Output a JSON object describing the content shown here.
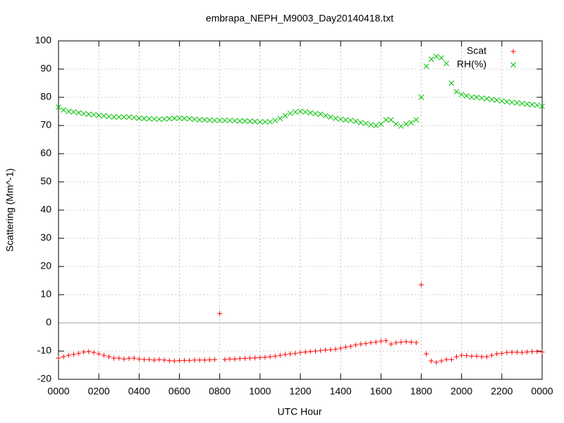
{
  "chart_data": {
    "type": "scatter",
    "title": "embrapa_NEPH_M9003_Day20140418.txt",
    "xlabel": "UTC Hour",
    "ylabel": "Scattering (Mm^-1)",
    "xlim": [
      0,
      24
    ],
    "ylim": [
      -20,
      100
    ],
    "xticks": [
      {
        "value": 0,
        "label": "0000"
      },
      {
        "value": 2,
        "label": "0200"
      },
      {
        "value": 4,
        "label": "0400"
      },
      {
        "value": 6,
        "label": "0600"
      },
      {
        "value": 8,
        "label": "0800"
      },
      {
        "value": 10,
        "label": "1000"
      },
      {
        "value": 12,
        "label": "1200"
      },
      {
        "value": 14,
        "label": "1400"
      },
      {
        "value": 16,
        "label": "1600"
      },
      {
        "value": 18,
        "label": "1800"
      },
      {
        "value": 20,
        "label": "2000"
      },
      {
        "value": 22,
        "label": "2200"
      },
      {
        "value": 24,
        "label": "0000"
      }
    ],
    "yticks": [
      -20,
      -10,
      0,
      10,
      20,
      30,
      40,
      50,
      60,
      70,
      80,
      90,
      100
    ],
    "grid": true,
    "zeroaxis": true,
    "legend": "top-right",
    "x": [
      0,
      0.25,
      0.5,
      0.75,
      1,
      1.25,
      1.5,
      1.75,
      2,
      2.25,
      2.5,
      2.75,
      3,
      3.25,
      3.5,
      3.75,
      4,
      4.25,
      4.5,
      4.75,
      5,
      5.25,
      5.5,
      5.75,
      6,
      6.25,
      6.5,
      6.75,
      7,
      7.25,
      7.5,
      7.75,
      8,
      8.25,
      8.5,
      8.75,
      9,
      9.25,
      9.5,
      9.75,
      10,
      10.25,
      10.5,
      10.75,
      11,
      11.25,
      11.5,
      11.75,
      12,
      12.25,
      12.5,
      12.75,
      13,
      13.25,
      13.5,
      13.75,
      14,
      14.25,
      14.5,
      14.75,
      15,
      15.25,
      15.5,
      15.75,
      16,
      16.25,
      16.5,
      16.75,
      17,
      17.25,
      17.5,
      17.75,
      18,
      18.25,
      18.5,
      18.75,
      19,
      19.25,
      19.5,
      19.75,
      20,
      20.25,
      20.5,
      20.75,
      21,
      21.25,
      21.5,
      21.75,
      22,
      22.25,
      22.5,
      22.75,
      23,
      23.25,
      23.5,
      23.75,
      24
    ],
    "series": [
      {
        "name": "Scat",
        "color": "#ff0000",
        "marker": "plus",
        "values": [
          -12.5,
          -12,
          -11.5,
          -11.2,
          -10.8,
          -10.3,
          -10.2,
          -10.5,
          -11,
          -11.5,
          -12,
          -12.5,
          -12.5,
          -12.8,
          -12.6,
          -12.5,
          -12.8,
          -13,
          -13,
          -13.2,
          -13,
          -13.2,
          -13.4,
          -13.5,
          -13.4,
          -13.3,
          -13.3,
          -13.2,
          -13.2,
          -13.2,
          -13.1,
          -13,
          3.3,
          -13,
          -12.8,
          -12.8,
          -12.7,
          -12.6,
          -12.5,
          -12.4,
          -12.3,
          -12.2,
          -12,
          -11.8,
          -11.5,
          -11.2,
          -11,
          -10.8,
          -10.5,
          -10.3,
          -10.2,
          -10,
          -9.8,
          -9.6,
          -9.5,
          -9.3,
          -9,
          -8.6,
          -8.3,
          -7.8,
          -7.5,
          -7.3,
          -7,
          -6.8,
          -6.5,
          -6.3,
          -7.5,
          -7,
          -6.8,
          -6.7,
          -6.8,
          -7,
          13.5,
          -11,
          -13.5,
          -14,
          -13.5,
          -13,
          -13,
          -12,
          -11.5,
          -11.6,
          -11.8,
          -11.8,
          -12,
          -12,
          -11.5,
          -11,
          -10.8,
          -10.5,
          -10.4,
          -10.4,
          -10.5,
          -10.3,
          -10.2,
          -10.2,
          -10.3
        ]
      },
      {
        "name": "RH(%)",
        "color": "#00c000",
        "marker": "cross",
        "values": [
          76.5,
          75.5,
          75,
          74.8,
          74.5,
          74.2,
          74,
          73.8,
          73.6,
          73.4,
          73.2,
          73,
          73,
          73,
          73,
          72.8,
          72.6,
          72.5,
          72.4,
          72.3,
          72.2,
          72.3,
          72.4,
          72.6,
          72.6,
          72.5,
          72.4,
          72.2,
          72,
          72,
          71.9,
          71.8,
          71.8,
          71.8,
          71.8,
          71.7,
          71.6,
          71.6,
          71.5,
          71.4,
          71.3,
          71.3,
          71.3,
          71.8,
          72.5,
          73.5,
          74.3,
          74.8,
          75,
          74.8,
          74.5,
          74.2,
          74,
          73.5,
          73,
          72.5,
          72.2,
          72,
          71.8,
          71.5,
          71,
          70.7,
          70.3,
          70,
          70.5,
          72,
          72,
          70.5,
          69.8,
          70.5,
          71,
          72,
          80,
          91,
          93.5,
          94.5,
          94,
          92,
          85,
          82,
          81,
          80.5,
          80,
          80,
          79.7,
          79.5,
          79.2,
          79,
          78.7,
          78.4,
          78.2,
          78,
          77.8,
          77.6,
          77.4,
          77.2,
          76.8
        ]
      }
    ]
  }
}
